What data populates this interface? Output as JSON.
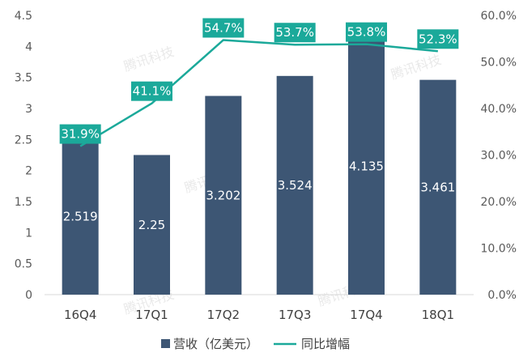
{
  "chart_data": {
    "type": "bar",
    "categories": [
      "16Q4",
      "17Q1",
      "17Q2",
      "17Q3",
      "17Q4",
      "18Q1"
    ],
    "series": [
      {
        "name": "营收（亿美元）",
        "type": "bar",
        "axis": "left",
        "values": [
          2.519,
          2.25,
          3.202,
          3.524,
          4.135,
          3.461
        ],
        "labels": [
          "2.519",
          "2.25",
          "3.202",
          "3.524",
          "4.135",
          "3.461"
        ]
      },
      {
        "name": "同比增幅",
        "type": "line",
        "axis": "right",
        "values": [
          31.9,
          41.1,
          54.7,
          53.7,
          53.8,
          52.3
        ],
        "labels": [
          "31.9%",
          "41.1%",
          "54.7%",
          "53.7%",
          "53.8%",
          "52.3%"
        ]
      }
    ],
    "ylim": [
      0,
      4.5
    ],
    "y_ticks": [
      "0",
      "0.5",
      "1",
      "1.5",
      "2",
      "2.5",
      "3",
      "3.5",
      "4",
      "4.5"
    ],
    "y2lim": [
      0,
      60
    ],
    "y2_ticks": [
      "0.0%",
      "10.0%",
      "20.0%",
      "30.0%",
      "40.0%",
      "50.0%",
      "60.0%"
    ],
    "legend_position": "bottom",
    "grid": false,
    "watermark": "腾讯科技",
    "colors": {
      "bar": "#3d5674",
      "line": "#1ba99a",
      "label_box": "#1ba99a"
    }
  }
}
